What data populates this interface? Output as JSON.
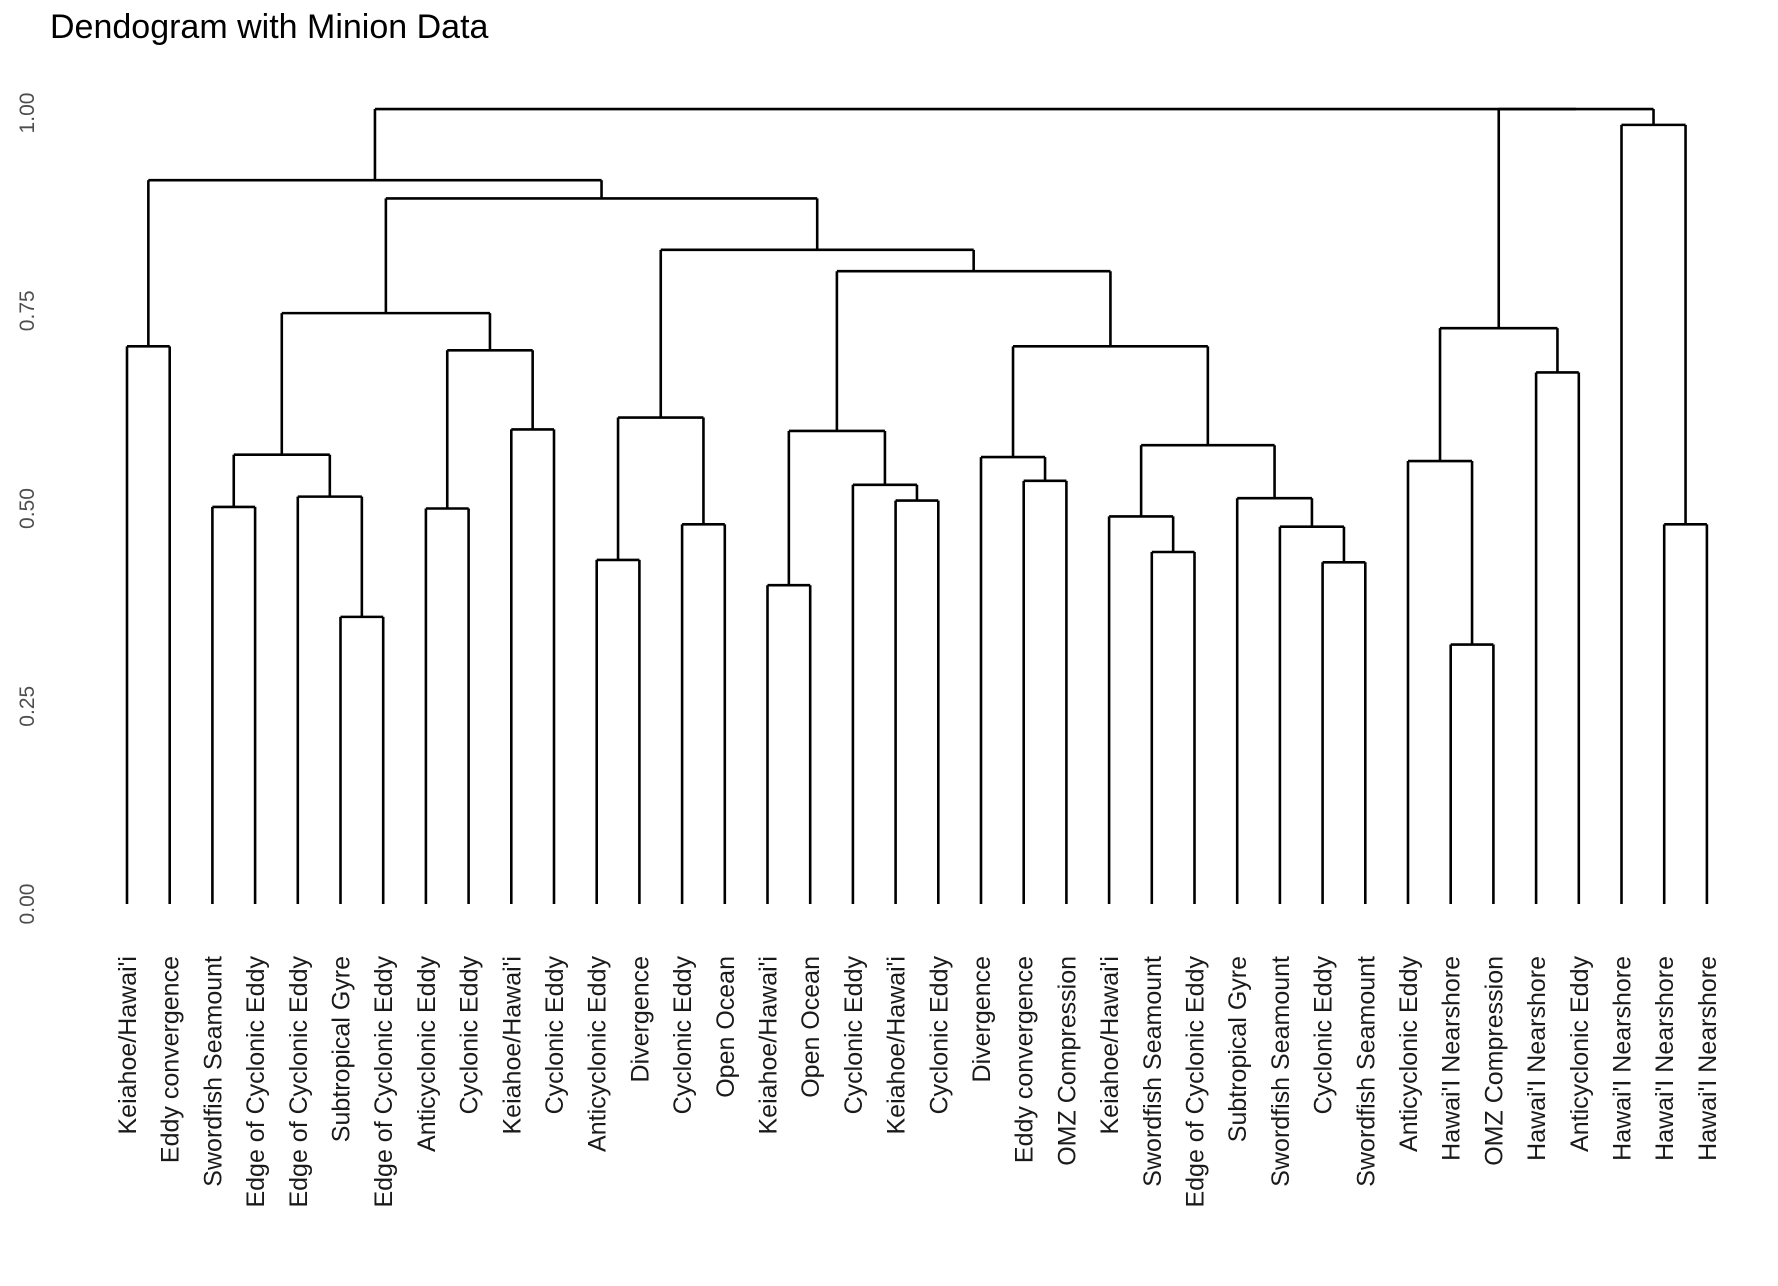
{
  "chart_data": {
    "type": "dendrogram",
    "title": "Dendogram with Minion Data",
    "xlabel": "",
    "ylabel": "",
    "ylim": [
      0,
      1.0
    ],
    "y_ticks": [
      "0.00",
      "0.25",
      "0.50",
      "0.75",
      "1.00"
    ],
    "y_tick_values": [
      0,
      0.25,
      0.5,
      0.75,
      1.0
    ],
    "grid": false,
    "leaves": [
      "Keiahoe/Hawai'i",
      "Eddy convergence",
      "Swordfish Seamount",
      "Edge of Cyclonic Eddy",
      "Edge of Cyclonic Eddy",
      "Subtropical Gyre",
      "Edge of Cyclonic Eddy",
      "Anticyclonic Eddy",
      "Cyclonic Eddy",
      "Keiahoe/Hawai'i",
      "Cyclonic Eddy",
      "Anticyclonic Eddy",
      "Divergence",
      "Cyclonic Eddy",
      "Open Ocean",
      "Keiahoe/Hawai'i",
      "Open Ocean",
      "Cyclonic Eddy",
      "Keiahoe/Hawai'i",
      "Cyclonic Eddy",
      "Divergence",
      "Eddy convergence",
      "OMZ Compression",
      "Keiahoe/Hawai'i",
      "Swordfish Seamount",
      "Edge of Cyclonic Eddy",
      "Subtropical Gyre",
      "Swordfish Seamount",
      "Cyclonic Eddy",
      "Swordfish Seamount",
      "Anticyclonic Eddy",
      "Hawai'I Nearshore",
      "OMZ Compression",
      "Hawai'I Nearshore",
      "Anticyclonic Eddy",
      "Hawai'I Nearshore",
      "Hawai'I Nearshore",
      "Hawai'I Nearshore"
    ],
    "merges": [
      {
        "children": [
          "L0",
          "L1"
        ],
        "height": 0.705
      },
      {
        "children": [
          "L2",
          "L3"
        ],
        "height": 0.502
      },
      {
        "children": [
          "L5",
          "L6"
        ],
        "height": 0.363
      },
      {
        "children": [
          "L4",
          "M2"
        ],
        "height": 0.515
      },
      {
        "children": [
          "M1",
          "M3"
        ],
        "height": 0.568
      },
      {
        "children": [
          "L9",
          "L10"
        ],
        "height": 0.6
      },
      {
        "children": [
          "L7",
          "L8"
        ],
        "height": 0.5
      },
      {
        "children": [
          "M6",
          "M5"
        ],
        "height": 0.7
      },
      {
        "children": [
          "M4",
          "M7"
        ],
        "height": 0.747
      },
      {
        "children": [
          "L11",
          "L12"
        ],
        "height": 0.435
      },
      {
        "children": [
          "L13",
          "L14"
        ],
        "height": 0.48
      },
      {
        "children": [
          "M9",
          "M10"
        ],
        "height": 0.615
      },
      {
        "children": [
          "L15",
          "L16"
        ],
        "height": 0.403
      },
      {
        "children": [
          "L18",
          "L19"
        ],
        "height": 0.51
      },
      {
        "children": [
          "L17",
          "M13"
        ],
        "height": 0.53
      },
      {
        "children": [
          "M12",
          "M14"
        ],
        "height": 0.598
      },
      {
        "children": [
          "L21",
          "L22"
        ],
        "height": 0.535
      },
      {
        "children": [
          "L20",
          "M16"
        ],
        "height": 0.565
      },
      {
        "children": [
          "L24",
          "L25"
        ],
        "height": 0.445
      },
      {
        "children": [
          "L23",
          "M18"
        ],
        "height": 0.49
      },
      {
        "children": [
          "L28",
          "L29"
        ],
        "height": 0.432
      },
      {
        "children": [
          "L27",
          "M20"
        ],
        "height": 0.477
      },
      {
        "children": [
          "L26",
          "M21"
        ],
        "height": 0.513
      },
      {
        "children": [
          "M19",
          "M22"
        ],
        "height": 0.58
      },
      {
        "children": [
          "M17",
          "M23"
        ],
        "height": 0.705
      },
      {
        "children": [
          "M15",
          "M24"
        ],
        "height": 0.8
      },
      {
        "children": [
          "M11",
          "M25"
        ],
        "height": 0.827
      },
      {
        "children": [
          "M8",
          "M26"
        ],
        "height": 0.892
      },
      {
        "children": [
          "M0",
          "M27"
        ],
        "height": 0.915
      },
      {
        "children": [
          "L31",
          "L32"
        ],
        "height": 0.328
      },
      {
        "children": [
          "L30",
          "M29"
        ],
        "height": 0.56
      },
      {
        "children": [
          "L33",
          "L34"
        ],
        "height": 0.672
      },
      {
        "children": [
          "M30",
          "M31"
        ],
        "height": 0.728
      },
      {
        "children": [
          "L36",
          "L37"
        ],
        "height": 0.48
      },
      {
        "children": [
          "L35",
          "M33"
        ],
        "height": 0.985
      },
      {
        "children": [
          "M32",
          "M34"
        ],
        "height": 1.005
      },
      {
        "children": [
          "M28",
          "M35"
        ],
        "height": 1.005
      }
    ]
  }
}
